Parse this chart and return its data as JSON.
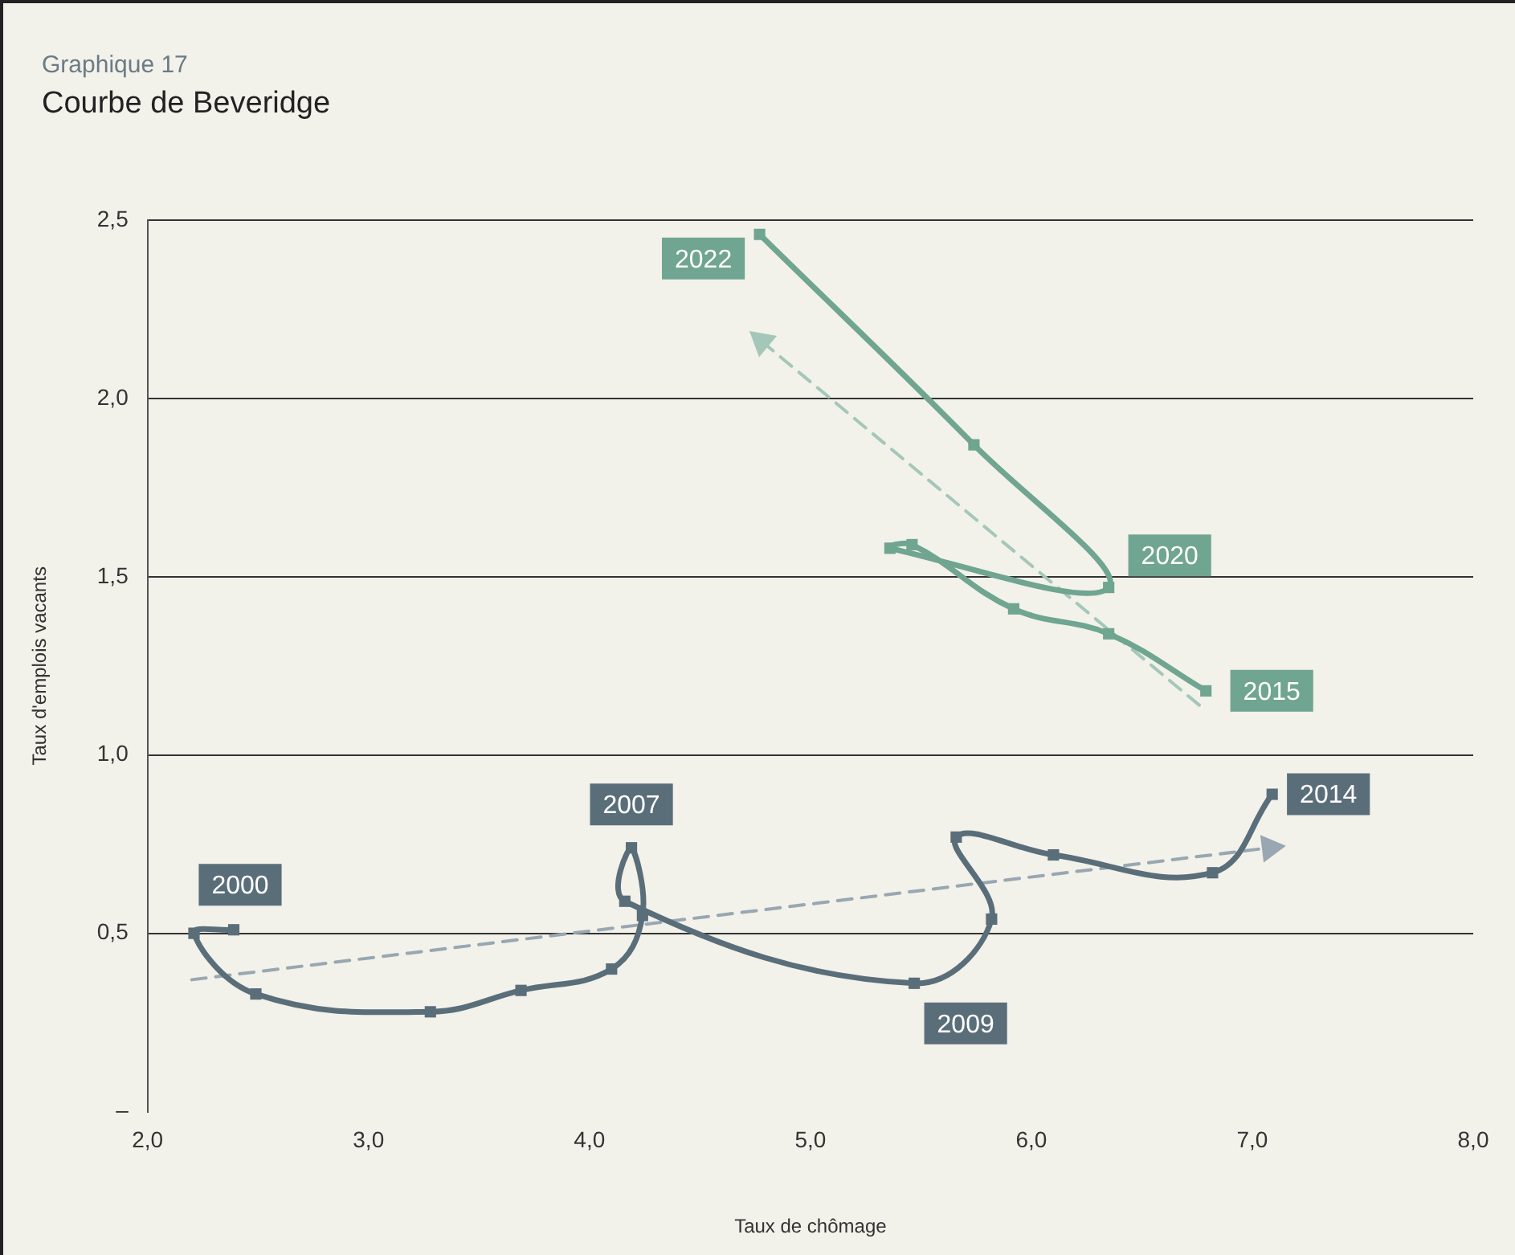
{
  "chart_data": {
    "type": "line",
    "title": "Courbe de Beveridge",
    "subtitle": "Graphique 17",
    "xlabel": "Taux de chômage",
    "ylabel": "Taux d'emplois vacants",
    "xlim": [
      2,
      8
    ],
    "xticks": [
      {
        "value": 2,
        "label": "2,0"
      },
      {
        "value": 3,
        "label": "3,0"
      },
      {
        "value": 4,
        "label": "4,0"
      },
      {
        "value": 5,
        "label": "5,0"
      },
      {
        "value": 6,
        "label": "6,0"
      },
      {
        "value": 7,
        "label": "7,0"
      },
      {
        "value": 8,
        "label": "8,0"
      }
    ],
    "ylim": [
      0,
      2.5
    ],
    "yticks": [
      {
        "value": 0,
        "label": "–"
      },
      {
        "value": 0.5,
        "label": "0,5"
      },
      {
        "value": 1,
        "label": "1,0"
      },
      {
        "value": 1.5,
        "label": "1,5"
      },
      {
        "value": 2,
        "label": "2,0"
      },
      {
        "value": 2.5,
        "label": "2,5"
      }
    ],
    "grid": "y",
    "legend": false,
    "marker": "square",
    "series": [
      {
        "color": "#5a6e7a",
        "x": [
          2.39,
          2.21,
          2.49,
          3.28,
          3.69,
          4.1,
          4.24,
          4.19,
          4.16,
          5.47,
          5.82,
          5.66,
          6.1,
          6.82,
          7.09
        ],
        "values": [
          0.51,
          0.5,
          0.33,
          0.28,
          0.34,
          0.4,
          0.55,
          0.74,
          0.59,
          0.36,
          0.54,
          0.77,
          0.72,
          0.67,
          0.89
        ]
      },
      {
        "color": "#6fa591",
        "x": [
          6.79,
          6.35,
          5.92,
          5.46,
          5.36,
          6.35,
          5.74,
          4.77
        ],
        "values": [
          1.18,
          1.34,
          1.41,
          1.59,
          1.58,
          1.47,
          1.87,
          2.46
        ]
      },
      {
        "color": "#98a7b1",
        "x": [
          2.2,
          7.08
        ],
        "values": [
          0.37,
          0.74
        ],
        "line_style": "dashed",
        "marker": "triangle"
      },
      {
        "color": "#a4c7ba",
        "x": [
          6.76,
          4.78
        ],
        "values": [
          1.14,
          2.16
        ],
        "line_style": "dashed",
        "marker": "triangle"
      }
    ],
    "annotations": [
      {
        "text": "2000",
        "x": 2.39,
        "y": 0.51
      },
      {
        "text": "2007",
        "x": 4.19,
        "y": 0.74
      },
      {
        "text": "2009",
        "x": 5.47,
        "y": 0.36
      },
      {
        "text": "2014",
        "x": 7.09,
        "y": 0.89
      },
      {
        "text": "2015",
        "x": 6.79,
        "y": 1.18
      },
      {
        "text": "2020",
        "x": 6.35,
        "y": 1.47
      },
      {
        "text": "2022",
        "x": 4.77,
        "y": 2.46
      }
    ]
  }
}
